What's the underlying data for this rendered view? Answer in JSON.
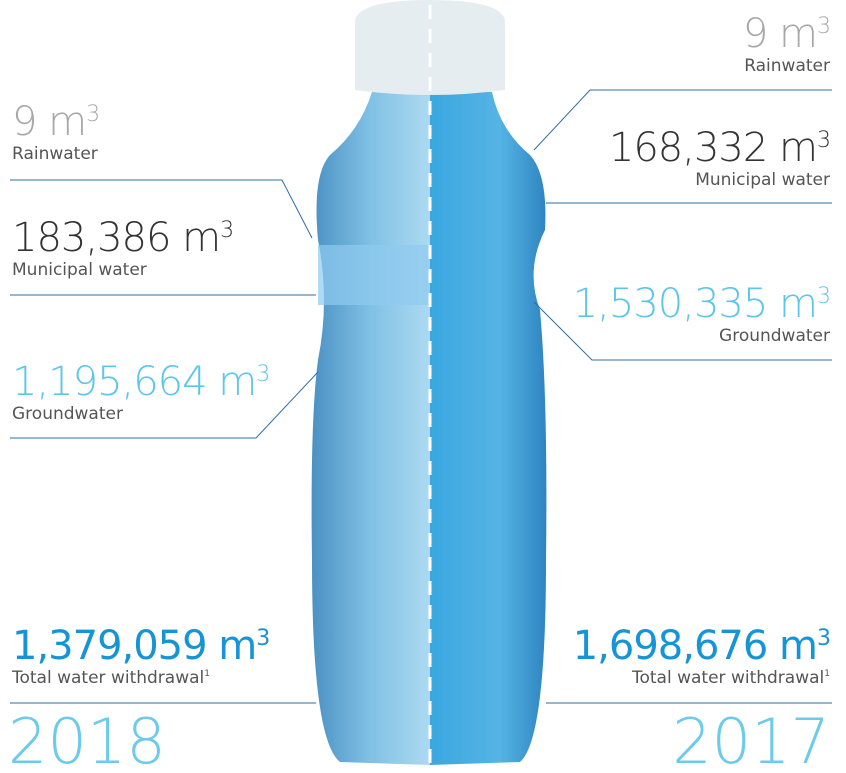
{
  "years": [
    {
      "year": "2018",
      "sources": [
        {
          "value": "9",
          "unit": "m",
          "exp": "3",
          "label": "Rainwater"
        },
        {
          "value": "183,386",
          "unit": "m",
          "exp": "3",
          "label": "Municipal water"
        },
        {
          "value": "1,195,664",
          "unit": "m",
          "exp": "3",
          "label": "Groundwater"
        }
      ],
      "total": {
        "value": "1,379,059",
        "unit": "m",
        "exp": "3",
        "label": "Total water withdrawal",
        "footnote": "1"
      }
    },
    {
      "year": "2017",
      "sources": [
        {
          "value": "9",
          "unit": "m",
          "exp": "3",
          "label": "Rainwater"
        },
        {
          "value": "168,332",
          "unit": "m",
          "exp": "3",
          "label": "Municipal water"
        },
        {
          "value": "1,530,335",
          "unit": "m",
          "exp": "3",
          "label": "Groundwater"
        }
      ],
      "total": {
        "value": "1,698,676",
        "unit": "m",
        "exp": "3",
        "label": "Total water withdrawal",
        "footnote": "1"
      }
    }
  ]
}
